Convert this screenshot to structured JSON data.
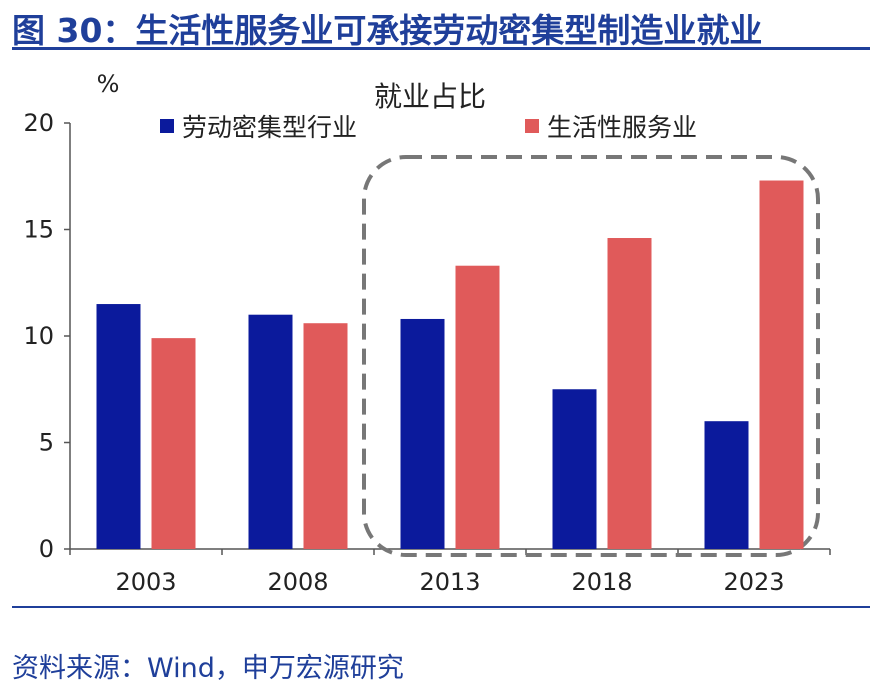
{
  "header": {
    "title": "图 30：生活性服务业可承接劳动密集型制造业就业"
  },
  "footer": {
    "source": "资料来源：Wind，申万宏源研究"
  },
  "chart_data": {
    "type": "bar",
    "title": "就业占比",
    "ylabel": "%",
    "ylim": [
      0,
      20
    ],
    "yticks": [
      0,
      5,
      10,
      15,
      20
    ],
    "categories": [
      "2003",
      "2008",
      "2013",
      "2018",
      "2023"
    ],
    "series": [
      {
        "name": "劳动密集型行业",
        "color": "#0b1a9c",
        "values": [
          11.5,
          11.0,
          10.8,
          7.5,
          6.0
        ]
      },
      {
        "name": "生活性服务业",
        "color": "#e05a5a",
        "values": [
          9.9,
          10.6,
          13.3,
          14.6,
          17.3
        ]
      }
    ],
    "legend_position": "top",
    "highlight": {
      "from_category": "2013",
      "to_category": "2023",
      "style": "dashed-rounded-box",
      "color": "#777777"
    }
  }
}
